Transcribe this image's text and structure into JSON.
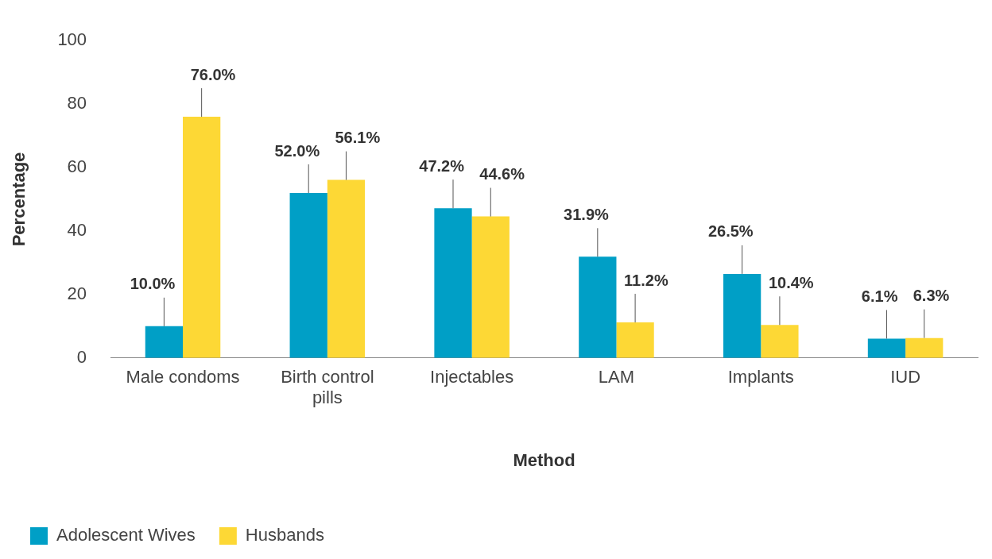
{
  "chart_data": {
    "type": "bar",
    "categories": [
      "Male condoms",
      "Birth control pills",
      "Injectables",
      "LAM",
      "Implants",
      "IUD"
    ],
    "series": [
      {
        "name": "Adolescent Wives",
        "color": "#009fc6",
        "values": [
          10.0,
          52.0,
          47.2,
          31.9,
          26.5,
          6.1
        ],
        "value_labels": [
          "10.0%",
          "52.0%",
          "47.2%",
          "31.9%",
          "26.5%",
          "6.1%"
        ]
      },
      {
        "name": "Husbands",
        "color": "#fdd835",
        "values": [
          76.0,
          56.1,
          44.6,
          11.2,
          10.4,
          6.3
        ],
        "value_labels": [
          "76.0%",
          "56.1%",
          "44.6%",
          "11.2%",
          "10.4%",
          "6.3%"
        ]
      }
    ],
    "xlabel": "Method",
    "ylabel": "Percentage",
    "ylim": [
      0,
      100
    ],
    "yticks": [
      0,
      20,
      40,
      60,
      80,
      100
    ],
    "grid": false,
    "legend": "bottom left"
  }
}
